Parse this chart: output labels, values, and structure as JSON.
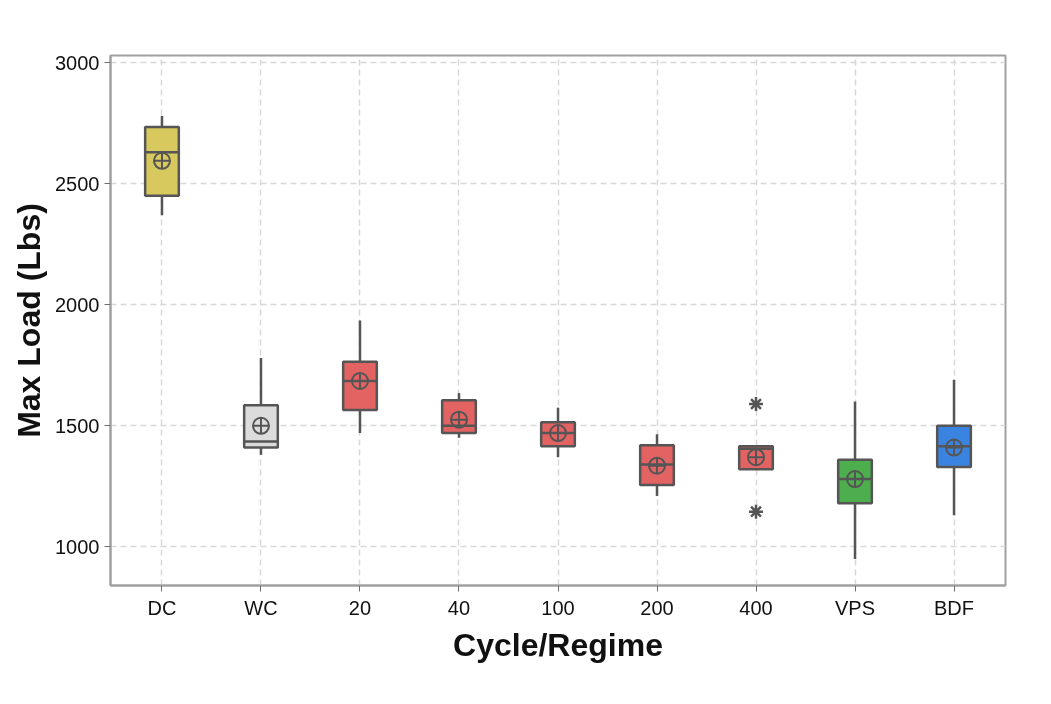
{
  "chart_data": {
    "type": "box",
    "xlabel": "Cycle/Regime",
    "ylabel": "Max Load (Lbs)",
    "categories": [
      "DC",
      "WC",
      "20",
      "40",
      "100",
      "200",
      "400",
      "VPS",
      "BDF"
    ],
    "colors": [
      "#d8c95e",
      "#dcdcdc",
      "#e36363",
      "#e36363",
      "#e36363",
      "#e36363",
      "#e36363",
      "#4cae4c",
      "#3b83e0"
    ],
    "boxes": [
      {
        "low": 2370,
        "q1": 2450,
        "median": 2630,
        "q3": 2735,
        "high": 2780,
        "mean": 2595
      },
      {
        "low": 1380,
        "q1": 1410,
        "median": 1435,
        "q3": 1585,
        "high": 1780,
        "mean": 1500
      },
      {
        "low": 1470,
        "q1": 1565,
        "median": 1685,
        "q3": 1765,
        "high": 1935,
        "mean": 1685
      },
      {
        "low": 1450,
        "q1": 1470,
        "median": 1500,
        "q3": 1605,
        "high": 1635,
        "mean": 1525
      },
      {
        "low": 1370,
        "q1": 1415,
        "median": 1470,
        "q3": 1515,
        "high": 1575,
        "mean": 1470
      },
      {
        "low": 1210,
        "q1": 1255,
        "median": 1340,
        "q3": 1420,
        "high": 1465,
        "mean": 1335
      },
      {
        "low": 1320,
        "q1": 1320,
        "median": 1405,
        "q3": 1415,
        "high": 1415,
        "mean": 1370,
        "outliers": [
          1590,
          1145
        ]
      },
      {
        "low": 950,
        "q1": 1180,
        "median": 1280,
        "q3": 1360,
        "high": 1600,
        "mean": 1280
      },
      {
        "low": 1130,
        "q1": 1330,
        "median": 1415,
        "q3": 1500,
        "high": 1690,
        "mean": 1410
      }
    ],
    "ylim": [
      840,
      3030
    ],
    "yticks": [
      1000,
      1500,
      2000,
      2500,
      3000
    ],
    "grid": true
  }
}
